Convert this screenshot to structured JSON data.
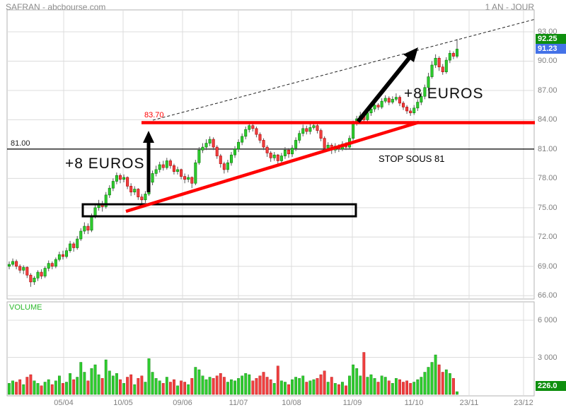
{
  "header": {
    "title": "SAFRAN - abcbourse.com",
    "timeframe": "1 AN - JOUR"
  },
  "price_axis": {
    "ticks": [
      "93.00",
      "90.00",
      "87.00",
      "84.00",
      "81.00",
      "78.00",
      "75.00",
      "72.00",
      "69.00",
      "66.00"
    ],
    "tick_values": [
      93,
      90,
      87,
      84,
      81,
      78,
      75,
      72,
      69,
      66
    ],
    "badges": [
      {
        "label": "92.25",
        "value": 92.25,
        "color": "#0e8f0e",
        "meaning": "session-high"
      },
      {
        "label": "91.23",
        "value": 91.23,
        "color": "#4472e8",
        "meaning": "last-price"
      }
    ]
  },
  "volume_axis": {
    "ticks": [
      "6 000",
      "3 000"
    ],
    "tick_values": [
      6000,
      3000
    ],
    "badge": {
      "label": "226.0",
      "value": 226,
      "color": "#0e8f0e"
    }
  },
  "x_axis": {
    "labels": [
      "05/04",
      "10/05",
      "09/06",
      "11/07",
      "10/08",
      "11/09",
      "11/10",
      "23/11",
      "23/12"
    ]
  },
  "pane_labels": {
    "volume": "VOLUME"
  },
  "annotations": {
    "level_81": {
      "label": "81.00",
      "value": 81
    },
    "level_83_70": {
      "label": "83.70",
      "value": 83.7
    },
    "plus8_left": "+8 EUROS",
    "plus8_right": "+8 EUROS",
    "stop": "STOP SOUS 81"
  },
  "colors": {
    "up": "#2ecc2e",
    "up_border": "#067a06",
    "down": "#f04040",
    "down_border": "#b00000",
    "annotation_red": "#ff0000",
    "annotation_black": "#000000",
    "grid": "#dcdcdc",
    "pane_border": "#b3b3b3",
    "badge_green": "#0e8f0e",
    "badge_blue": "#4472e8",
    "volume_label": "#2db82d",
    "axis_text": "#808080"
  },
  "chart_data": {
    "type": "candlestick+volume",
    "title": "SAFRAN daily candlestick chart, 1 year, with breakout annotations",
    "price_range": [
      66,
      93
    ],
    "price_grid_step": 3,
    "volume_range": [
      0,
      6000
    ],
    "x_labels": [
      "05/04",
      "10/05",
      "09/06",
      "11/07",
      "10/08",
      "11/09",
      "11/10",
      "23/11",
      "23/12"
    ],
    "legend": "none",
    "grid": true,
    "resistance_level": 83.7,
    "stop_level": 81,
    "last_price": 91.23,
    "session_high": 92.25,
    "last_volume": 226,
    "candles_format": [
      "open",
      "high",
      "low",
      "close",
      "volume"
    ],
    "candles": [
      [
        69.0,
        69.5,
        68.7,
        69.2,
        900
      ],
      [
        69.2,
        69.8,
        69.0,
        69.5,
        1100
      ],
      [
        69.5,
        69.7,
        68.7,
        69.0,
        1000
      ],
      [
        69.0,
        69.2,
        68.3,
        68.6,
        1200
      ],
      [
        68.6,
        69.1,
        68.2,
        68.9,
        800
      ],
      [
        68.9,
        69.0,
        67.8,
        68.1,
        1400
      ],
      [
        68.1,
        68.3,
        66.9,
        67.4,
        1600
      ],
      [
        67.4,
        68.0,
        67.1,
        67.8,
        1100
      ],
      [
        67.8,
        68.6,
        67.5,
        68.4,
        900
      ],
      [
        68.4,
        68.7,
        67.7,
        68.0,
        700
      ],
      [
        68.0,
        69.0,
        67.8,
        68.8,
        1000
      ],
      [
        68.8,
        69.6,
        68.5,
        69.3,
        1200
      ],
      [
        69.3,
        69.5,
        68.7,
        69.0,
        800
      ],
      [
        69.0,
        69.9,
        68.8,
        69.7,
        1100
      ],
      [
        69.7,
        70.5,
        69.5,
        70.2,
        1500
      ],
      [
        70.2,
        70.6,
        69.7,
        70.0,
        900
      ],
      [
        70.0,
        70.9,
        69.8,
        70.6,
        1000
      ],
      [
        70.6,
        71.6,
        70.4,
        71.3,
        1700
      ],
      [
        71.3,
        71.5,
        70.5,
        70.9,
        1200
      ],
      [
        70.9,
        72.1,
        70.7,
        71.8,
        1400
      ],
      [
        71.8,
        72.9,
        71.6,
        72.6,
        2600
      ],
      [
        72.6,
        73.5,
        72.3,
        73.1,
        1800
      ],
      [
        73.1,
        73.4,
        72.3,
        72.7,
        1100
      ],
      [
        72.7,
        74.4,
        72.5,
        74.1,
        2100
      ],
      [
        74.1,
        75.3,
        73.9,
        75.0,
        2400
      ],
      [
        75.0,
        75.8,
        74.7,
        75.4,
        1600
      ],
      [
        75.4,
        75.7,
        74.6,
        75.1,
        1300
      ],
      [
        75.1,
        76.6,
        74.9,
        76.3,
        2800
      ],
      [
        76.3,
        77.3,
        76.0,
        77.0,
        1900
      ],
      [
        77.0,
        78.0,
        76.7,
        77.7,
        1500
      ],
      [
        77.7,
        78.6,
        77.4,
        78.3,
        1700
      ],
      [
        78.3,
        78.5,
        77.5,
        77.9,
        1200
      ],
      [
        77.9,
        78.4,
        77.6,
        78.1,
        900
      ],
      [
        78.1,
        78.2,
        76.9,
        77.2,
        1400
      ],
      [
        77.2,
        77.5,
        76.2,
        76.6,
        1600
      ],
      [
        76.6,
        77.2,
        76.3,
        76.9,
        800
      ],
      [
        76.9,
        77.0,
        75.8,
        76.1,
        1300
      ],
      [
        76.1,
        76.4,
        75.4,
        75.8,
        1500
      ],
      [
        75.8,
        76.7,
        75.5,
        76.4,
        1000
      ],
      [
        76.4,
        77.9,
        76.2,
        77.6,
        2900
      ],
      [
        77.6,
        78.8,
        77.3,
        78.5,
        1800
      ],
      [
        78.5,
        79.3,
        78.2,
        78.9,
        1300
      ],
      [
        78.9,
        79.7,
        78.6,
        79.4,
        1100
      ],
      [
        79.4,
        79.8,
        78.8,
        79.1,
        900
      ],
      [
        79.1,
        80.1,
        78.9,
        79.8,
        1400
      ],
      [
        79.8,
        80.0,
        79.0,
        79.3,
        1000
      ],
      [
        79.3,
        79.5,
        78.4,
        78.7,
        1200
      ],
      [
        78.7,
        79.2,
        78.4,
        78.9,
        700
      ],
      [
        78.9,
        79.0,
        77.9,
        78.2,
        1100
      ],
      [
        78.2,
        78.5,
        77.5,
        77.9,
        1000
      ],
      [
        77.9,
        78.4,
        77.6,
        78.1,
        800
      ],
      [
        78.1,
        78.2,
        77.0,
        77.5,
        1300
      ],
      [
        77.5,
        79.9,
        77.3,
        79.6,
        2200
      ],
      [
        79.6,
        81.2,
        79.4,
        80.9,
        2000
      ],
      [
        80.9,
        81.6,
        80.6,
        81.2,
        1500
      ],
      [
        81.2,
        82.0,
        80.9,
        81.6,
        1200
      ],
      [
        81.6,
        82.3,
        81.3,
        82.0,
        1400
      ],
      [
        82.0,
        82.2,
        80.9,
        81.2,
        1300
      ],
      [
        81.2,
        81.4,
        80.0,
        80.3,
        1500
      ],
      [
        80.3,
        80.5,
        79.1,
        79.5,
        1700
      ],
      [
        79.5,
        79.7,
        78.5,
        78.9,
        1400
      ],
      [
        78.9,
        79.9,
        78.6,
        79.6,
        1000
      ],
      [
        79.6,
        80.7,
        79.3,
        80.4,
        1200
      ],
      [
        80.4,
        81.3,
        80.1,
        81.0,
        1100
      ],
      [
        81.0,
        82.0,
        80.7,
        81.7,
        1300
      ],
      [
        81.7,
        82.6,
        81.4,
        82.3,
        1500
      ],
      [
        82.3,
        83.3,
        82.0,
        83.0,
        1700
      ],
      [
        83.0,
        83.8,
        82.7,
        83.4,
        1600
      ],
      [
        83.4,
        83.7,
        82.8,
        83.1,
        1100
      ],
      [
        83.1,
        83.3,
        82.2,
        82.5,
        1300
      ],
      [
        82.5,
        82.7,
        81.6,
        81.9,
        1500
      ],
      [
        81.9,
        82.1,
        80.9,
        81.2,
        1800
      ],
      [
        81.2,
        81.4,
        80.2,
        80.6,
        1400
      ],
      [
        80.6,
        80.8,
        79.7,
        80.1,
        1200
      ],
      [
        80.1,
        80.7,
        79.8,
        80.4,
        900
      ],
      [
        80.4,
        80.5,
        79.4,
        79.8,
        2300
      ],
      [
        79.8,
        80.6,
        79.5,
        80.3,
        1100
      ],
      [
        80.3,
        81.2,
        80.0,
        80.9,
        1000
      ],
      [
        80.9,
        81.1,
        80.1,
        80.5,
        800
      ],
      [
        80.5,
        81.4,
        80.2,
        81.1,
        1200
      ],
      [
        81.1,
        82.2,
        80.8,
        81.9,
        1400
      ],
      [
        81.9,
        82.9,
        81.6,
        82.6,
        1300
      ],
      [
        82.6,
        83.5,
        82.3,
        83.1,
        1500
      ],
      [
        83.1,
        83.4,
        82.5,
        82.8,
        1000
      ],
      [
        82.8,
        83.6,
        82.5,
        83.2,
        1100
      ],
      [
        83.2,
        83.7,
        83.0,
        83.4,
        1200
      ],
      [
        83.4,
        83.6,
        82.6,
        82.9,
        1300
      ],
      [
        82.9,
        83.1,
        81.8,
        82.1,
        1600
      ],
      [
        82.1,
        82.3,
        80.8,
        81.1,
        1900
      ],
      [
        81.1,
        81.7,
        80.9,
        81.4,
        1000
      ],
      [
        81.4,
        81.6,
        80.5,
        80.9,
        1400
      ],
      [
        80.9,
        81.6,
        80.6,
        81.3,
        900
      ],
      [
        81.3,
        81.5,
        80.7,
        81.0,
        800
      ],
      [
        81.0,
        81.8,
        80.8,
        81.5,
        1000
      ],
      [
        81.5,
        81.7,
        80.9,
        81.2,
        700
      ],
      [
        81.2,
        82.4,
        81.0,
        82.1,
        1500
      ],
      [
        82.1,
        83.9,
        81.9,
        83.6,
        2400
      ],
      [
        83.6,
        84.4,
        83.4,
        84.1,
        2100
      ],
      [
        84.1,
        84.8,
        83.9,
        84.4,
        1500
      ],
      [
        84.4,
        84.6,
        83.7,
        84.0,
        3400
      ],
      [
        84.0,
        85.0,
        83.8,
        84.7,
        1400
      ],
      [
        84.7,
        85.4,
        84.4,
        85.1,
        1600
      ],
      [
        85.1,
        85.8,
        84.8,
        85.5,
        1300
      ],
      [
        85.5,
        85.7,
        85.0,
        85.3,
        1000
      ],
      [
        85.3,
        86.2,
        85.1,
        85.9,
        1500
      ],
      [
        85.9,
        86.5,
        85.7,
        86.2,
        1400
      ],
      [
        86.2,
        86.4,
        85.5,
        85.8,
        1100
      ],
      [
        85.8,
        86.4,
        85.6,
        86.1,
        900
      ],
      [
        86.1,
        86.7,
        85.9,
        86.3,
        1300
      ],
      [
        86.3,
        86.5,
        85.4,
        85.7,
        1200
      ],
      [
        85.7,
        85.9,
        85.0,
        85.3,
        1000
      ],
      [
        85.3,
        85.5,
        84.6,
        84.9,
        1100
      ],
      [
        84.9,
        85.2,
        84.4,
        84.7,
        900
      ],
      [
        84.7,
        85.5,
        84.5,
        85.2,
        1000
      ],
      [
        85.2,
        86.1,
        84.9,
        85.8,
        1200
      ],
      [
        85.8,
        86.8,
        85.5,
        86.4,
        1400
      ],
      [
        86.4,
        87.6,
        86.1,
        87.3,
        1800
      ],
      [
        87.3,
        88.8,
        87.0,
        88.4,
        2200
      ],
      [
        88.4,
        90.0,
        88.2,
        89.6,
        2600
      ],
      [
        89.6,
        90.7,
        89.3,
        90.3,
        3200
      ],
      [
        90.3,
        90.5,
        89.0,
        89.4,
        2400
      ],
      [
        89.4,
        89.7,
        88.6,
        88.9,
        1800
      ],
      [
        88.9,
        90.4,
        88.7,
        90.1,
        2000
      ],
      [
        90.1,
        91.1,
        89.8,
        90.8,
        1700
      ],
      [
        90.8,
        91.0,
        90.2,
        90.5,
        1300
      ],
      [
        90.5,
        92.25,
        90.3,
        91.23,
        226
      ]
    ],
    "drawn_annotations": {
      "horizontal_resistance": {
        "price": 83.7,
        "color": "#ff0000",
        "label": "83.70"
      },
      "horizontal_stop": {
        "price": 81,
        "color": "#000000",
        "label": "81.00",
        "text": "STOP SOUS 81"
      },
      "rising_support_trendline": {
        "color": "#ff0000",
        "from_price": 74.8,
        "to_price": 83.7
      },
      "dashed_channel_line": {
        "color": "#000000",
        "style": "dashed",
        "from_price": 83.9,
        "to_price": 94.3
      },
      "arrows": [
        {
          "type": "vertical-up",
          "meaning": "+8 EUROS move from base to 83.70"
        },
        {
          "type": "diagonal-up",
          "meaning": "+8 EUROS projected move after breakout"
        }
      ],
      "base_rectangle": {
        "price_top": 75.4,
        "price_bottom": 74.2,
        "color": "#000000"
      }
    }
  }
}
